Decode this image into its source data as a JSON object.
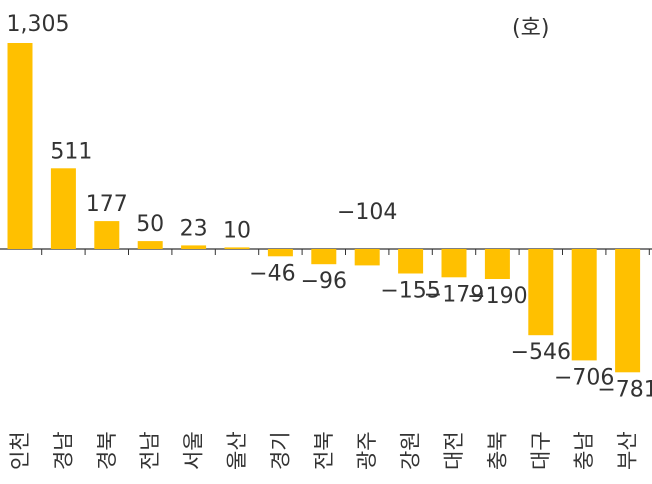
{
  "chart_data": {
    "type": "bar",
    "unit_label": "(호)",
    "categories": [
      "인천",
      "경남",
      "경북",
      "전남",
      "서울",
      "울산",
      "경기",
      "전북",
      "광주",
      "강원",
      "대전",
      "충북",
      "대구",
      "충남",
      "부산"
    ],
    "values": [
      1305,
      511,
      177,
      50,
      23,
      10,
      -46,
      -96,
      -104,
      -155,
      -179,
      -190,
      -546,
      -706,
      -781
    ],
    "value_labels": [
      "1,305",
      "511",
      "177",
      "50",
      "23",
      "10",
      "−46",
      "−96",
      "−104",
      "−155",
      "−179",
      "−190",
      "−546",
      "−706",
      "−781"
    ],
    "bar_color": "#FFC000",
    "axis_color": "#333333",
    "ylim": [
      -781,
      1305
    ],
    "grid": false,
    "legend": "none"
  }
}
